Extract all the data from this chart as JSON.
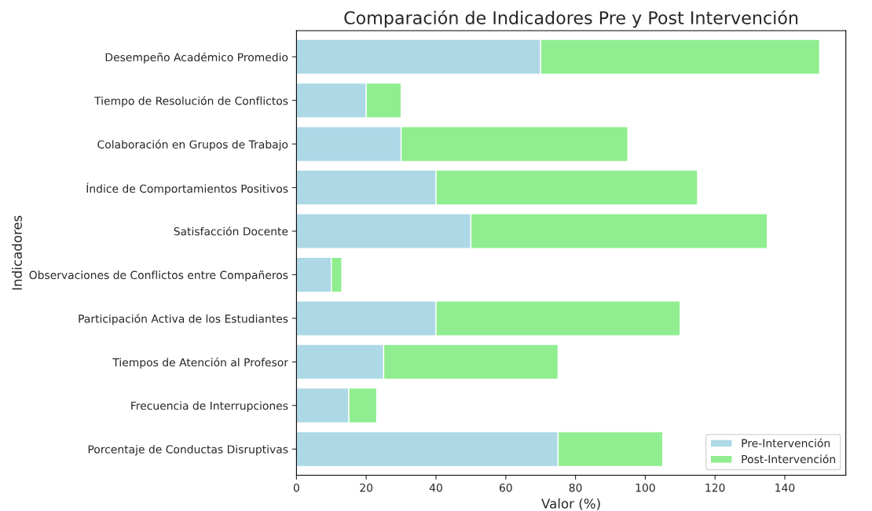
{
  "chart_data": {
    "type": "bar",
    "orientation": "horizontal",
    "stacked": true,
    "title": "Comparación de Indicadores Pre y Post Intervención",
    "xlabel": "Valor (%)",
    "ylabel": "Indicadores",
    "categories": [
      "Desempeño Académico Promedio",
      "Tiempo de Resolución de Conflictos",
      "Colaboración en Grupos de Trabajo",
      "Índice de Comportamientos Positivos",
      "Satisfacción Docente",
      "Observaciones de Conflictos entre Compañeros",
      "Participación Activa de los Estudiantes",
      "Tiempos de Atención al Profesor",
      "Frecuencia de Interrupciones",
      "Porcentaje de Conductas Disruptivas"
    ],
    "series": [
      {
        "name": "Pre-Intervención",
        "color": "#add8e6",
        "values": [
          70,
          20,
          30,
          40,
          50,
          10,
          40,
          25,
          15,
          75
        ]
      },
      {
        "name": "Post-Intervención",
        "color": "#90ee90",
        "values": [
          80,
          10,
          65,
          75,
          85,
          3,
          70,
          50,
          8,
          30
        ]
      }
    ],
    "xlim": [
      0,
      157.5
    ],
    "xticks": [
      0,
      20,
      40,
      60,
      80,
      100,
      120,
      140
    ],
    "grid": false,
    "legend": "bottom right"
  }
}
